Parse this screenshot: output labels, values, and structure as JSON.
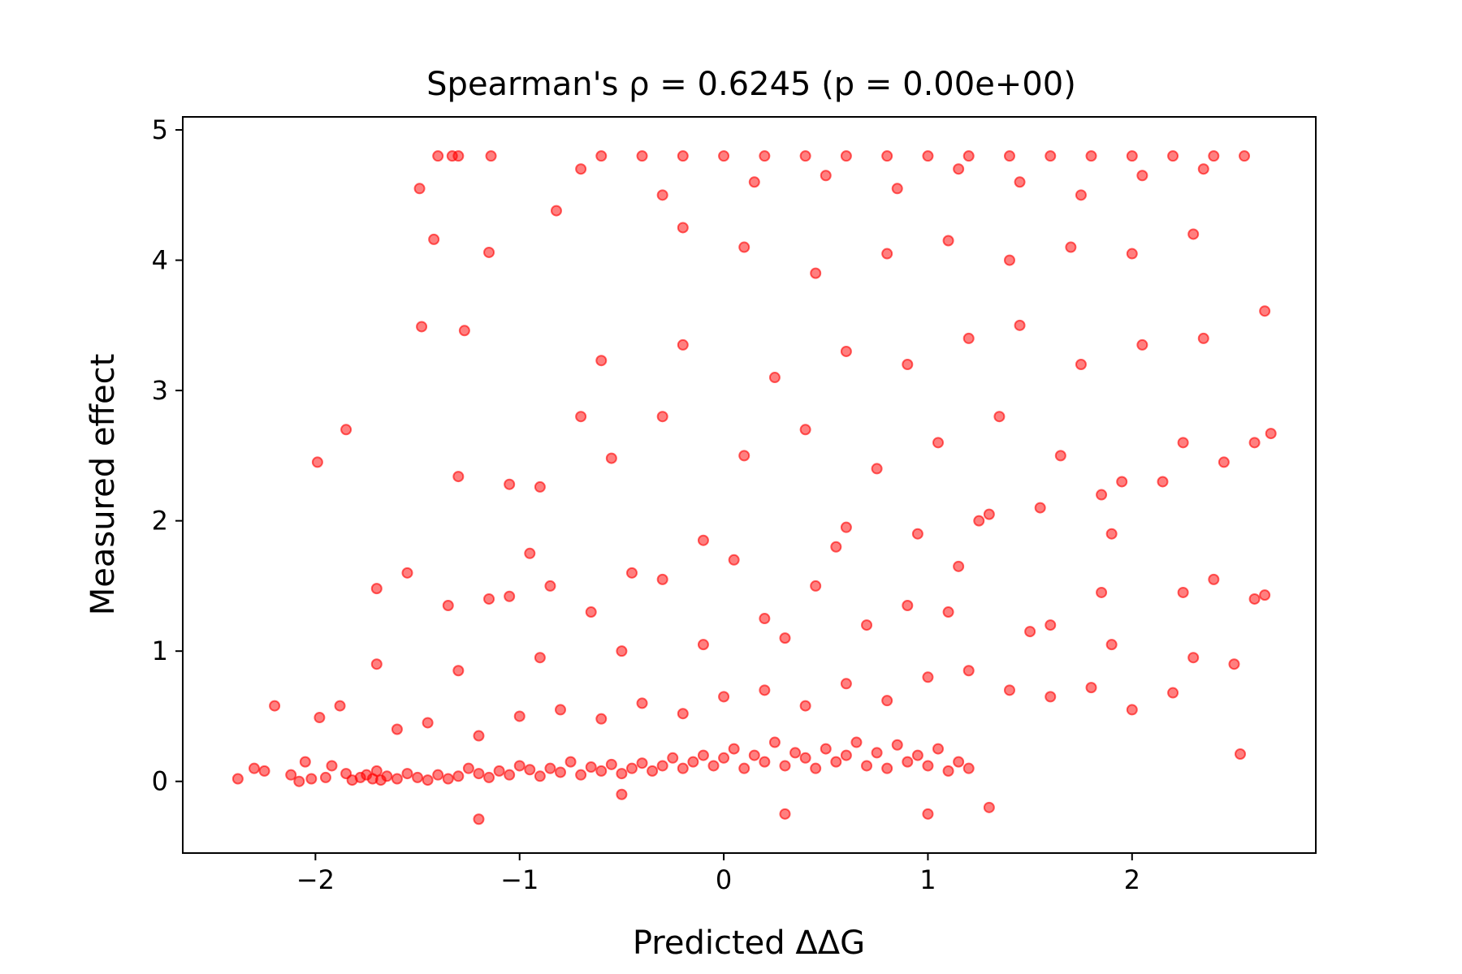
{
  "chart_data": {
    "type": "scatter",
    "title": "Spearman's ρ = 0.6245 (p = 0.00e+00)",
    "xlabel": "Predicted ΔΔG",
    "ylabel": "Measured effect",
    "xlim": [
      -2.65,
      2.9
    ],
    "ylim": [
      -0.55,
      5.1
    ],
    "xticks": [
      -2,
      -1,
      0,
      1,
      2
    ],
    "xtick_labels": [
      "−2",
      "−1",
      "0",
      "1",
      "2"
    ],
    "yticks": [
      0,
      1,
      2,
      3,
      4,
      5
    ],
    "ytick_labels": [
      "0",
      "1",
      "2",
      "3",
      "4",
      "5"
    ],
    "grid": false,
    "legend": null,
    "marker_color": "#ff0000",
    "marker_alpha": 0.5,
    "series": [
      {
        "x": [
          -2.38,
          -2.3,
          -2.25,
          -2.2,
          -2.12,
          -2.08,
          -2.05,
          -2.02,
          -1.98,
          -1.95,
          -1.92,
          -1.88,
          -1.85,
          -1.82,
          -1.78,
          -1.75,
          -1.72,
          -1.7,
          -1.68,
          -1.65,
          -1.6,
          -1.55,
          -1.5,
          -1.45,
          -1.4,
          -1.35,
          -1.3,
          -1.25,
          -1.2,
          -1.15,
          -1.1,
          -1.05,
          -1.0,
          -0.95,
          -0.9,
          -0.85,
          -0.8,
          -0.75,
          -0.7,
          -0.65,
          -0.6,
          -0.55,
          -0.5,
          -0.45,
          -0.4,
          -0.35,
          -0.3,
          -0.25,
          -0.2,
          -0.15,
          -0.1,
          -0.05,
          0.0,
          0.05,
          0.1,
          0.15,
          0.2,
          0.25,
          0.3,
          0.35,
          0.4,
          0.45,
          0.5,
          0.55,
          0.6,
          0.65,
          0.7,
          0.75,
          0.8,
          0.85,
          0.9,
          0.95,
          1.0,
          1.05,
          1.1,
          1.15,
          1.2,
          -1.6,
          -1.45,
          -1.2,
          -1.0,
          -0.8,
          -0.6,
          -0.4,
          -0.2,
          0.0,
          0.2,
          0.4,
          0.6,
          0.8,
          1.0,
          1.2,
          1.4,
          1.6,
          1.8,
          2.0,
          2.2,
          -1.7,
          -1.3,
          -0.9,
          -0.5,
          -0.1,
          0.3,
          0.7,
          1.1,
          1.5,
          1.9,
          2.3,
          2.5,
          -1.35,
          -1.15,
          -0.85,
          -0.45,
          0.05,
          0.55,
          0.95,
          1.25,
          1.55,
          1.85,
          2.15,
          2.45,
          -1.99,
          -1.85,
          -1.3,
          -1.05,
          -0.9,
          -0.7,
          -0.55,
          -0.3,
          0.1,
          0.4,
          0.75,
          1.05,
          1.35,
          1.65,
          1.95,
          2.25,
          2.6,
          2.68,
          -1.48,
          -1.27,
          -0.6,
          -0.2,
          0.25,
          0.6,
          0.9,
          1.2,
          1.45,
          1.75,
          2.05,
          2.35,
          -1.42,
          -1.15,
          -0.82,
          -0.2,
          0.1,
          0.45,
          0.8,
          1.1,
          1.4,
          1.7,
          2.0,
          2.3,
          -1.49,
          -1.4,
          -1.33,
          -0.7,
          -0.3,
          0.15,
          0.5,
          0.85,
          1.15,
          1.45,
          1.75,
          2.05,
          2.35,
          -1.3,
          -1.14,
          -0.6,
          -0.4,
          -0.2,
          0.0,
          0.2,
          0.4,
          0.6,
          0.8,
          1.0,
          1.2,
          1.4,
          1.6,
          1.8,
          2.0,
          2.2,
          2.4,
          2.55,
          -1.2,
          -0.5,
          0.3,
          1.3,
          2.53,
          1.0,
          -1.55,
          -1.05,
          -0.3,
          0.45,
          1.15,
          1.85,
          2.4,
          -0.95,
          -0.1,
          0.6,
          1.3,
          1.9,
          2.65,
          -1.7,
          -0.65,
          0.2,
          0.9,
          1.6,
          2.25,
          2.6,
          2.65
        ],
        "y": [
          0.02,
          0.1,
          0.08,
          0.58,
          0.05,
          0.0,
          0.15,
          0.02,
          0.49,
          0.03,
          0.12,
          0.58,
          0.06,
          0.01,
          0.03,
          0.05,
          0.02,
          0.08,
          0.01,
          0.04,
          0.02,
          0.06,
          0.03,
          0.01,
          0.05,
          0.02,
          0.04,
          0.1,
          0.06,
          0.03,
          0.08,
          0.05,
          0.12,
          0.09,
          0.04,
          0.1,
          0.07,
          0.15,
          0.05,
          0.11,
          0.08,
          0.13,
          0.06,
          0.1,
          0.14,
          0.08,
          0.12,
          0.18,
          0.1,
          0.15,
          0.2,
          0.12,
          0.18,
          0.25,
          0.1,
          0.2,
          0.15,
          0.3,
          0.12,
          0.22,
          0.18,
          0.1,
          0.25,
          0.15,
          0.2,
          0.3,
          0.12,
          0.22,
          0.1,
          0.28,
          0.15,
          0.2,
          0.12,
          0.25,
          0.08,
          0.15,
          0.1,
          0.4,
          0.45,
          0.35,
          0.5,
          0.55,
          0.48,
          0.6,
          0.52,
          0.65,
          0.7,
          0.58,
          0.75,
          0.62,
          0.8,
          0.85,
          0.7,
          0.65,
          0.72,
          0.55,
          0.68,
          0.9,
          0.85,
          0.95,
          1.0,
          1.05,
          1.1,
          1.2,
          1.3,
          1.15,
          1.05,
          0.95,
          0.9,
          1.35,
          1.4,
          1.5,
          1.6,
          1.7,
          1.8,
          1.9,
          2.0,
          2.1,
          2.2,
          2.3,
          2.45,
          2.45,
          2.7,
          2.34,
          2.28,
          2.26,
          2.8,
          2.48,
          2.8,
          2.5,
          2.7,
          2.4,
          2.6,
          2.8,
          2.5,
          2.3,
          2.6,
          2.6,
          2.67,
          3.49,
          3.46,
          3.23,
          3.35,
          3.1,
          3.3,
          3.2,
          3.4,
          3.5,
          3.2,
          3.35,
          3.4,
          4.16,
          4.06,
          4.38,
          4.25,
          4.1,
          3.9,
          4.05,
          4.15,
          4.0,
          4.1,
          4.05,
          4.2,
          4.55,
          4.8,
          4.8,
          4.7,
          4.5,
          4.6,
          4.65,
          4.55,
          4.7,
          4.6,
          4.5,
          4.65,
          4.7,
          4.8,
          4.8,
          4.8,
          4.8,
          4.8,
          4.8,
          4.8,
          4.8,
          4.8,
          4.8,
          4.8,
          4.8,
          4.8,
          4.8,
          4.8,
          4.8,
          4.8,
          4.8,
          4.8,
          -0.29,
          -0.1,
          -0.25,
          -0.2,
          0.21,
          -0.25,
          1.6,
          1.42,
          1.55,
          1.5,
          1.65,
          1.45,
          1.55,
          1.75,
          1.85,
          1.95,
          2.05,
          1.9,
          1.43,
          1.48,
          1.3,
          1.25,
          1.35,
          1.2,
          1.45,
          1.4,
          3.61
        ]
      }
    ]
  }
}
